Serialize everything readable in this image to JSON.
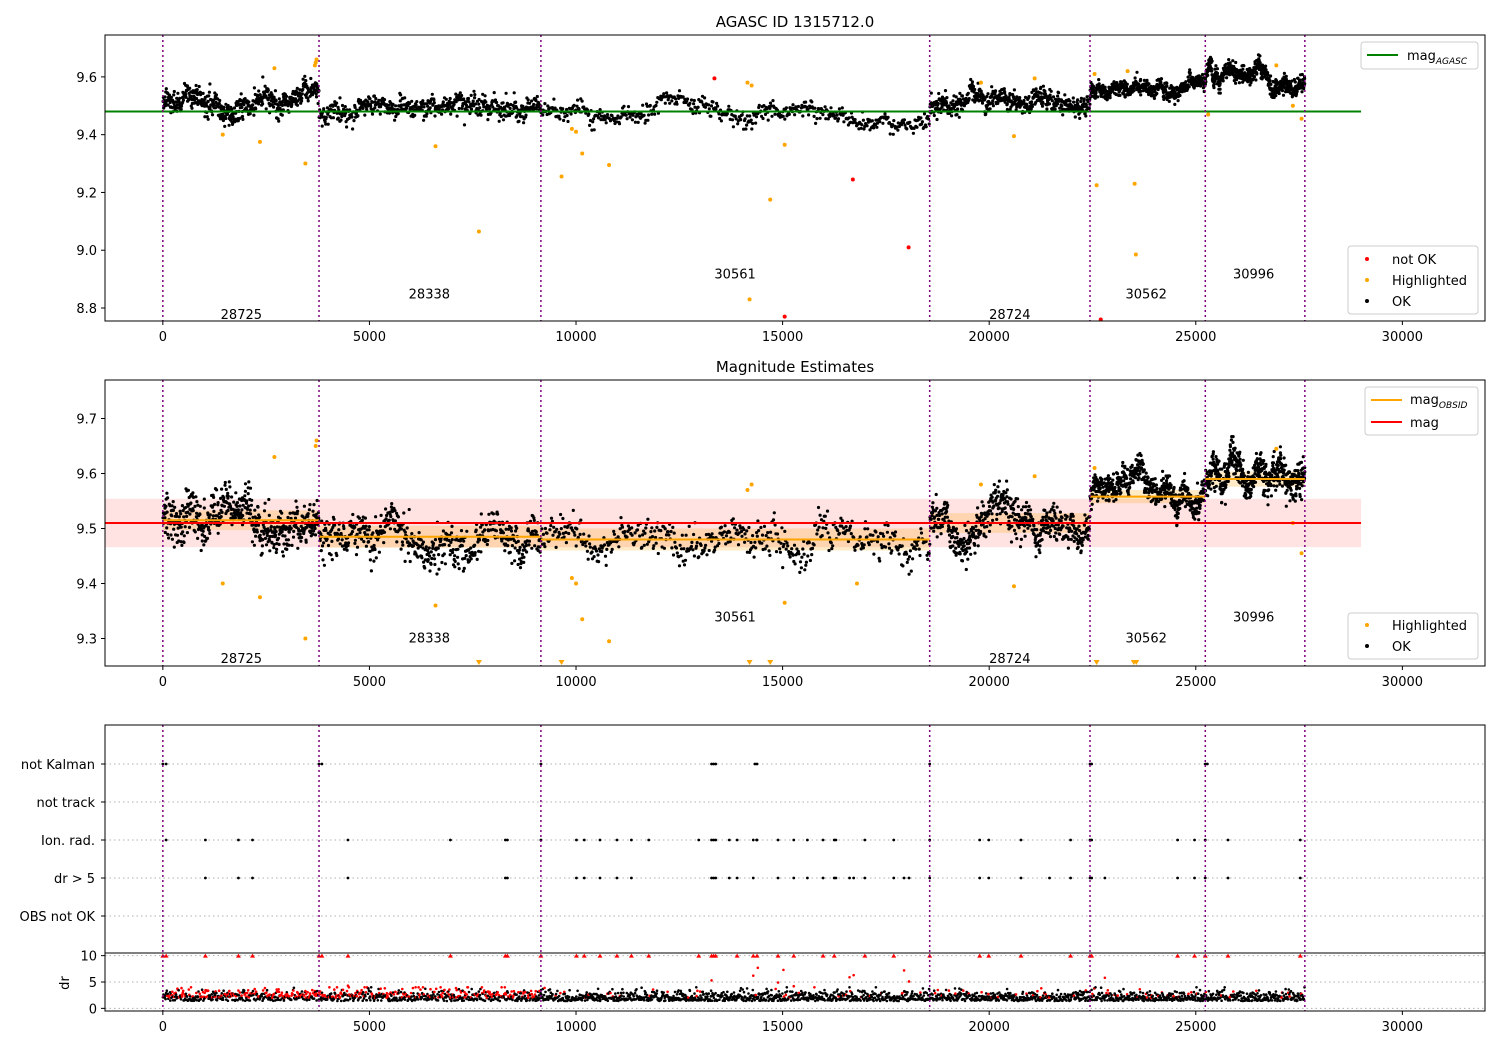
{
  "colors": {
    "ok": "#000000",
    "highlighted": "#ffa500",
    "not_ok": "#ff0000",
    "agasc_line": "#008000",
    "obsid_line": "#ffa500",
    "mean_line": "#ff0000",
    "band": "#ffc0c0",
    "obsid_boundary": "#800080"
  },
  "chart_data": [
    {
      "type": "scatter",
      "title": "AGASC ID 1315712.0",
      "xlim": [
        -1400,
        32000
      ],
      "ylim": [
        8.755,
        9.745
      ],
      "xticks": [
        "0",
        "5000",
        "10000",
        "15000",
        "20000",
        "25000",
        "30000"
      ],
      "yticks": [
        "8.8",
        "9.0",
        "9.2",
        "9.4",
        "9.6"
      ],
      "obsid_boundaries": [
        0,
        3780,
        9150,
        18560,
        22440,
        25230,
        27640
      ],
      "obsid_labels": [
        {
          "text": "28725",
          "x": 1900,
          "y": 8.78
        },
        {
          "text": "28338",
          "x": 6450,
          "y": 8.85
        },
        {
          "text": "30561",
          "x": 13850,
          "y": 8.92
        },
        {
          "text": "28724",
          "x": 20500,
          "y": 8.78
        },
        {
          "text": "30562",
          "x": 23800,
          "y": 8.85
        },
        {
          "text": "30996",
          "x": 26400,
          "y": 8.92
        }
      ],
      "legend_lines": [
        {
          "label_main": "mag",
          "label_sub": "AGASC",
          "color": "#008000"
        }
      ],
      "legend_points": [
        {
          "label": "not OK",
          "color": "#ff0000"
        },
        {
          "label": "Highlighted",
          "color": "#ffa500"
        },
        {
          "label": "OK",
          "color": "#000000"
        }
      ],
      "agasc_mag": 9.48,
      "agasc_xrange": [
        -1400,
        29000
      ],
      "segments": [
        {
          "x0": 0,
          "x1": 3780,
          "base": 9.52,
          "spread": 0.035
        },
        {
          "x0": 3780,
          "x1": 9150,
          "base": 9.485,
          "spread": 0.03
        },
        {
          "x0": 9150,
          "x1": 18560,
          "base": 9.48,
          "spread": 0.025
        },
        {
          "x0": 18560,
          "x1": 22440,
          "base": 9.505,
          "spread": 0.03
        },
        {
          "x0": 22440,
          "x1": 25230,
          "base": 9.56,
          "spread": 0.02
        },
        {
          "x0": 25230,
          "x1": 27640,
          "base": 9.59,
          "spread": 0.025
        }
      ],
      "highlighted_points": [
        [
          1450,
          9.4
        ],
        [
          2350,
          9.375
        ],
        [
          3450,
          9.3
        ],
        [
          6600,
          9.36
        ],
        [
          7650,
          9.065
        ],
        [
          9650,
          9.255
        ],
        [
          10150,
          9.335
        ],
        [
          10800,
          9.295
        ],
        [
          14200,
          8.83
        ],
        [
          14700,
          9.175
        ],
        [
          15050,
          9.365
        ],
        [
          22600,
          9.225
        ],
        [
          23520,
          9.23
        ],
        [
          23550,
          8.985
        ],
        [
          25300,
          9.47
        ],
        [
          3700,
          9.65
        ],
        [
          3720,
          9.66
        ],
        [
          3680,
          9.64
        ],
        [
          14150,
          9.58
        ],
        [
          14250,
          9.57
        ],
        [
          19800,
          9.58
        ],
        [
          21100,
          9.595
        ],
        [
          22550,
          9.61
        ],
        [
          23350,
          9.62
        ],
        [
          26950,
          9.64
        ],
        [
          27350,
          9.5
        ],
        [
          27560,
          9.455
        ],
        [
          2700,
          9.63
        ],
        [
          10000,
          9.41
        ],
        [
          9900,
          9.42
        ],
        [
          20600,
          9.395
        ]
      ],
      "notok_points": [
        [
          13350,
          9.595
        ],
        [
          15050,
          8.77
        ],
        [
          16700,
          9.245
        ],
        [
          18050,
          9.01
        ],
        [
          22700,
          8.76
        ]
      ]
    },
    {
      "type": "scatter",
      "title": "Magnitude Estimates",
      "xlim": [
        -1400,
        32000
      ],
      "ylim": [
        9.25,
        9.77
      ],
      "xticks": [
        "0",
        "5000",
        "10000",
        "15000",
        "20000",
        "25000",
        "30000"
      ],
      "yticks": [
        "9.3",
        "9.4",
        "9.5",
        "9.6",
        "9.7"
      ],
      "obsid_boundaries": [
        0,
        3780,
        9150,
        18560,
        22440,
        25230,
        27640
      ],
      "obsid_labels": [
        {
          "text": "28725",
          "x": 1900,
          "y": 9.265
        },
        {
          "text": "28338",
          "x": 6450,
          "y": 9.302
        },
        {
          "text": "30561",
          "x": 13850,
          "y": 9.34
        },
        {
          "text": "28724",
          "x": 20500,
          "y": 9.265
        },
        {
          "text": "30562",
          "x": 23800,
          "y": 9.302
        },
        {
          "text": "30996",
          "x": 26400,
          "y": 9.34
        }
      ],
      "legend_lines": [
        {
          "label_main": "mag",
          "label_sub": "OBSID",
          "color": "#ffa500"
        },
        {
          "label_main": "mag",
          "label_sub": "",
          "color": "#ff0000"
        }
      ],
      "legend_points": [
        {
          "label": "Highlighted",
          "color": "#ffa500"
        },
        {
          "label": "OK",
          "color": "#000000"
        }
      ],
      "mean_mag": 9.51,
      "mean_band": [
        9.466,
        9.554
      ],
      "mean_xrange": [
        -1400,
        29000
      ],
      "obsid_mags": [
        {
          "x0": 0,
          "x1": 3780,
          "mag": 9.515,
          "err": 0.018
        },
        {
          "x0": 3780,
          "x1": 9150,
          "mag": 9.485,
          "err": 0.02
        },
        {
          "x0": 9150,
          "x1": 18560,
          "mag": 9.48,
          "err": 0.02
        },
        {
          "x0": 18560,
          "x1": 22440,
          "mag": 9.51,
          "err": 0.018
        },
        {
          "x0": 22440,
          "x1": 25230,
          "mag": 9.558,
          "err": 0.012
        },
        {
          "x0": 25230,
          "x1": 27640,
          "mag": 9.59,
          "err": 0.014
        }
      ],
      "segments": [
        {
          "x0": 0,
          "x1": 3780,
          "base": 9.52,
          "spread": 0.035
        },
        {
          "x0": 3780,
          "x1": 9150,
          "base": 9.485,
          "spread": 0.03
        },
        {
          "x0": 9150,
          "x1": 18560,
          "base": 9.48,
          "spread": 0.025
        },
        {
          "x0": 18560,
          "x1": 22440,
          "base": 9.505,
          "spread": 0.03
        },
        {
          "x0": 22440,
          "x1": 25230,
          "base": 9.56,
          "spread": 0.02
        },
        {
          "x0": 25230,
          "x1": 27640,
          "base": 9.59,
          "spread": 0.025
        }
      ],
      "highlighted_points": [
        [
          1450,
          9.4
        ],
        [
          2350,
          9.375
        ],
        [
          3450,
          9.3
        ],
        [
          6600,
          9.36
        ],
        [
          10150,
          9.335
        ],
        [
          10800,
          9.295
        ],
        [
          15050,
          9.365
        ],
        [
          14250,
          9.58
        ],
        [
          14150,
          9.57
        ],
        [
          3700,
          9.65
        ],
        [
          3720,
          9.66
        ],
        [
          2700,
          9.63
        ],
        [
          22550,
          9.61
        ],
        [
          26950,
          9.645
        ],
        [
          27350,
          9.51
        ],
        [
          27560,
          9.455
        ],
        [
          9900,
          9.41
        ],
        [
          10000,
          9.4
        ],
        [
          16800,
          9.4
        ],
        [
          19800,
          9.58
        ],
        [
          21100,
          9.595
        ],
        [
          20600,
          9.395
        ]
      ],
      "highlighted_offscale": [
        7650,
        9650,
        14200,
        14700,
        22600,
        23500,
        23560
      ]
    },
    {
      "type": "scatter",
      "title": "",
      "xlim": [
        -1400,
        32000
      ],
      "flag_labels": [
        "not Kalman",
        "not track",
        "Ion. rad.",
        "dr > 5",
        "OBS not OK"
      ],
      "obsid_boundaries": [
        0,
        3780,
        9150,
        18560,
        22440,
        25230,
        27640
      ],
      "flag_points": {
        "not Kalman": [
          0,
          80,
          3780,
          3850,
          9150,
          13280,
          13330,
          13380,
          14330,
          14380,
          18560,
          22440,
          22480,
          25230,
          25280
        ],
        "not track": [],
        "Ion. rad.": [
          80,
          1030,
          1830,
          2170,
          4480,
          6960,
          8290,
          8340,
          9150,
          10010,
          10200,
          10580,
          10990,
          11340,
          11760,
          12970,
          13280,
          13330,
          13380,
          13710,
          13900,
          14290,
          14380,
          14370,
          14890,
          15270,
          15600,
          15980,
          16250,
          16290,
          16990,
          17690,
          18560,
          19770,
          19990,
          20770,
          21970,
          22440,
          22480,
          24560,
          24970,
          25230,
          25780,
          27530
        ],
        "dr > 5": [
          1030,
          1830,
          2170,
          4480,
          8290,
          8340,
          10010,
          10200,
          10580,
          10990,
          11340,
          13280,
          13330,
          13380,
          13710,
          13900,
          14290,
          14890,
          15270,
          15600,
          15980,
          16250,
          16290,
          16620,
          16720,
          16990,
          17690,
          17940,
          18060,
          18560,
          19770,
          19990,
          20770,
          21460,
          21970,
          22440,
          22480,
          22800,
          24560,
          24970,
          25230,
          25780,
          27530
        ],
        "OBS not OK": []
      },
      "dr_panel": {
        "ylabel": "dr",
        "yticks": [
          "0",
          "5",
          "10"
        ],
        "ylim": [
          -0.5,
          10.5
        ],
        "clipped_x": [
          0,
          80,
          3780,
          3850,
          4480,
          1030,
          1830,
          2170,
          6960,
          8290,
          8340,
          9150,
          10010,
          10200,
          10580,
          10990,
          11340,
          11760,
          12970,
          13280,
          13330,
          13380,
          13900,
          14290,
          14380,
          14890,
          15270,
          15980,
          16250,
          16990,
          17690,
          18560,
          19770,
          19990,
          20770,
          21970,
          22440,
          22480,
          24560,
          24970,
          25230,
          25780,
          27530
        ],
        "outliers": [
          [
            13280,
            5.3
          ],
          [
            14890,
            4.9
          ],
          [
            14290,
            6.2
          ],
          [
            15270,
            4.2
          ],
          [
            16620,
            5.9
          ],
          [
            16720,
            6.3
          ],
          [
            17940,
            7.2
          ],
          [
            18060,
            5.1
          ],
          [
            22800,
            5.8
          ],
          [
            4480,
            4.3
          ],
          [
            14400,
            7.7
          ],
          [
            15020,
            7.3
          ]
        ]
      }
    }
  ]
}
